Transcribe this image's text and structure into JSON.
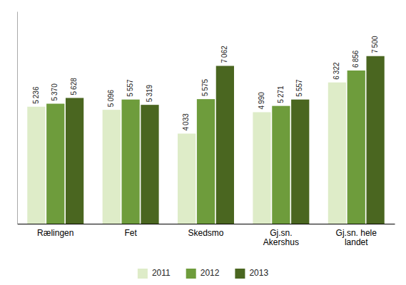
{
  "chart_data": {
    "type": "bar",
    "categories": [
      "Rælingen",
      "Fet",
      "Skedsmo",
      "Gj.sn.\nAkershus",
      "Gj.sn. hele\nlandet"
    ],
    "series": [
      {
        "name": "2011",
        "color": "#deecc8",
        "values": [
          5236,
          5096,
          4033,
          4990,
          6322
        ],
        "value_labels": [
          "5 236",
          "5 096",
          "4 033",
          "4 990",
          "6 322"
        ]
      },
      {
        "name": "2012",
        "color": "#6e9c3c",
        "values": [
          5370,
          5557,
          5575,
          5271,
          6856
        ],
        "value_labels": [
          "5 370",
          "5 557",
          "5 575",
          "5 271",
          "6 856"
        ]
      },
      {
        "name": "2013",
        "color": "#4a6620",
        "values": [
          5628,
          5319,
          7062,
          5557,
          7500
        ],
        "value_labels": [
          "5 628",
          "5 319",
          "7 062",
          "5 557",
          "7 500"
        ]
      }
    ],
    "ylim": [
      0,
      9500
    ],
    "tick_labels": "x",
    "grid": false,
    "data_labels": true,
    "legend": "bottom"
  }
}
